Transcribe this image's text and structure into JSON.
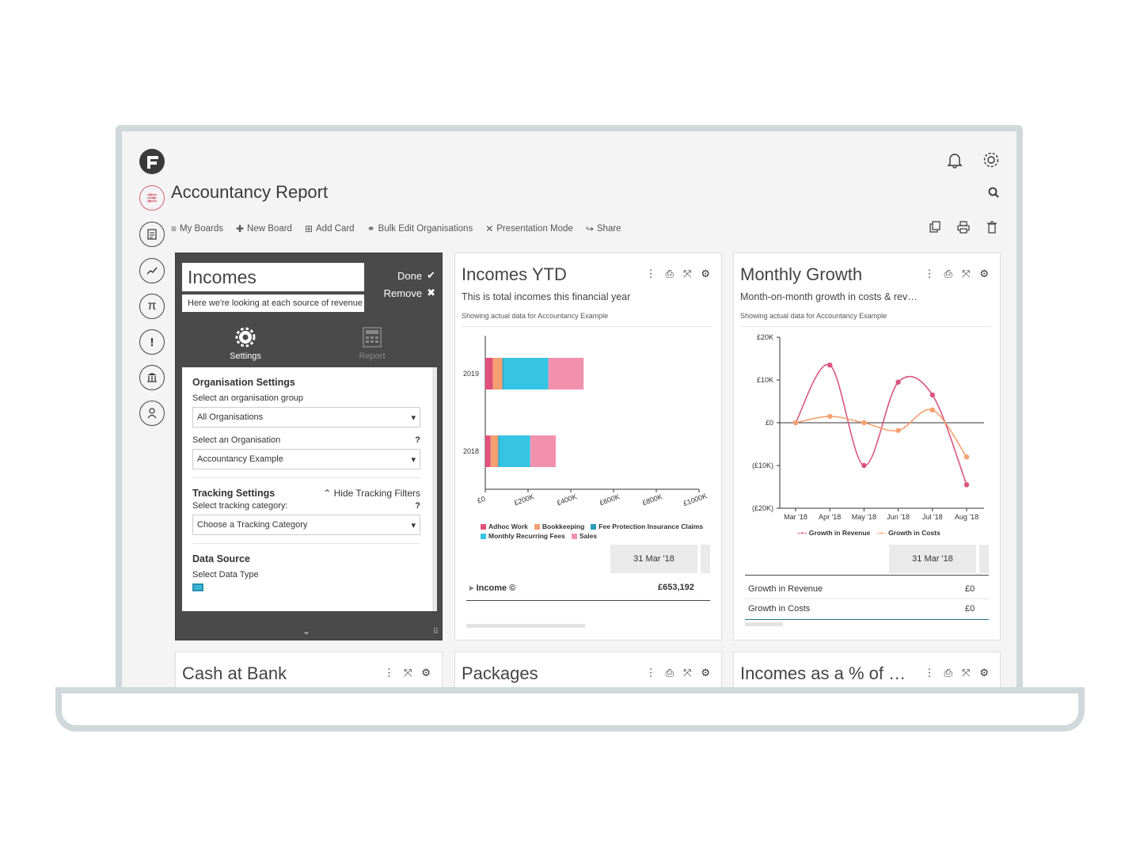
{
  "app": {
    "title": "Accountancy Report"
  },
  "toolbar": {
    "my_boards": "My Boards",
    "new_board": "New Board",
    "add_card": "Add Card",
    "bulk_edit": "Bulk Edit Organisations",
    "presentation": "Presentation Mode",
    "share": "Share"
  },
  "incomes_card": {
    "name": "Incomes",
    "description": "Here we're looking at each source of revenue",
    "done": "Done",
    "remove": "Remove",
    "tab_settings": "Settings",
    "tab_report": "Report",
    "org_heading": "Organisation Settings",
    "org_group_label": "Select an organisation group",
    "org_group_value": "All Organisations",
    "org_label": "Select an Organisation",
    "org_value": "Accountancy Example",
    "tracking_heading": "Tracking Settings",
    "hide_tracking": "Hide Tracking Filters",
    "tracking_label": "Select tracking category:",
    "tracking_value": "Choose a Tracking Category",
    "data_source_heading": "Data Source",
    "data_type_label": "Select Data Type",
    "help": "?"
  },
  "incomes_ytd": {
    "title": "Incomes YTD",
    "subtitle": "This is total incomes this financial year",
    "note": "Showing actual data for Accountancy Example",
    "date": "31 Mar '18",
    "row_label": "Income",
    "row_value": "£653,192"
  },
  "monthly_growth": {
    "title": "Monthly Growth",
    "subtitle": "Month-on-month growth in costs & rev…",
    "note": "Showing actual data for Accountancy Example",
    "date": "31 Mar '18",
    "rows": [
      {
        "label": "Growth in Revenue",
        "value": "£0"
      },
      {
        "label": "Growth in Costs",
        "value": "£0"
      }
    ]
  },
  "bottom_cards": {
    "cash": "Cash at Bank",
    "packages": "Packages",
    "incomes_pct": "Incomes as a % of …"
  },
  "chart_data": [
    {
      "type": "bar",
      "orientation": "horizontal",
      "stacked": true,
      "categories": [
        "2019",
        "2018"
      ],
      "series": [
        {
          "name": "Adhoc Work",
          "color": "#e0507a",
          "values": [
            35000,
            25000
          ]
        },
        {
          "name": "Bookkeeping",
          "color": "#f59e72",
          "values": [
            45000,
            35000
          ]
        },
        {
          "name": "Fee Protection Insurance Claims",
          "color": "#2a9dbd",
          "values": [
            5000,
            5000
          ]
        },
        {
          "name": "Monthly Recurring Fees",
          "color": "#35c4e4",
          "values": [
            210000,
            145000
          ]
        },
        {
          "name": "Sales",
          "color": "#f291ae",
          "values": [
            165000,
            120000
          ]
        }
      ],
      "x_ticks": [
        "£0",
        "£200K",
        "£400K",
        "£600K",
        "£800K",
        "£1000K"
      ],
      "xlim": [
        0,
        1000000
      ]
    },
    {
      "type": "line",
      "categories": [
        "Mar '18",
        "Apr '18",
        "May '18",
        "Jun '18",
        "Jul '18",
        "Aug '18"
      ],
      "series": [
        {
          "name": "Growth in Revenue",
          "color": "#d9557e",
          "values": [
            0,
            13500,
            -10000,
            9500,
            6500,
            -14500
          ]
        },
        {
          "name": "Growth in Costs",
          "color": "#f5a070",
          "values": [
            0,
            1500,
            0,
            -1800,
            3000,
            -8000
          ]
        }
      ],
      "y_ticks": [
        "£20K",
        "£10K",
        "£0",
        "(£10K)",
        "(£20K)"
      ],
      "ylim": [
        -20000,
        20000
      ]
    }
  ]
}
